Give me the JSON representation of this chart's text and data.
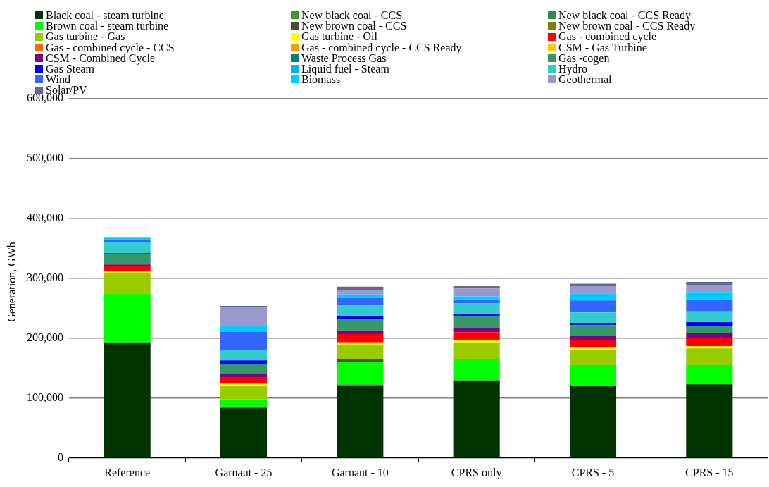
{
  "chart_data": {
    "type": "bar",
    "stacked": true,
    "ylabel": "Generation, GWh",
    "categories": [
      "Reference",
      "Garnaut - 25",
      "Garnaut - 10",
      "CPRS only",
      "CPRS - 5",
      "CPRS - 15"
    ],
    "ylim": [
      0,
      600000
    ],
    "yticks": [
      {
        "value": 0,
        "label": "0"
      },
      {
        "value": 100000,
        "label": "100,000"
      },
      {
        "value": 200000,
        "label": "200,000"
      },
      {
        "value": 300000,
        "label": "300,000"
      },
      {
        "value": 400000,
        "label": "400,000"
      },
      {
        "value": 500000,
        "label": "500,000"
      },
      {
        "value": 600000,
        "label": "600,000"
      }
    ],
    "grid": "y",
    "legend": "top",
    "series": [
      {
        "name": "Black coal - steam turbine",
        "color": "#003300",
        "values": [
          193000,
          84000,
          121000,
          128000,
          121000,
          123000
        ]
      },
      {
        "name": "New black coal - CCS",
        "color": "#339933",
        "values": [
          0,
          2000,
          2000,
          2000,
          0,
          0
        ]
      },
      {
        "name": "New black coal - CCS Ready",
        "color": "#2e8b57",
        "values": [
          0,
          0,
          0,
          0,
          0,
          0
        ]
      },
      {
        "name": "Brown coal - steam turbine",
        "color": "#00ff00",
        "values": [
          82000,
          12000,
          37000,
          35000,
          34000,
          32000
        ]
      },
      {
        "name": "New brown coal - CCS",
        "color": "#4d4d33",
        "values": [
          0,
          0,
          5000,
          0,
          0,
          0
        ]
      },
      {
        "name": "New brown coal - CCS Ready",
        "color": "#808000",
        "values": [
          0,
          0,
          0,
          0,
          0,
          0
        ]
      },
      {
        "name": "Gas turbine - Gas",
        "color": "#99cc00",
        "values": [
          33000,
          23000,
          24000,
          28000,
          26000,
          28000
        ]
      },
      {
        "name": "Gas turbine - Oil",
        "color": "#ffff00",
        "values": [
          4000,
          3000,
          4000,
          4000,
          4000,
          4000
        ]
      },
      {
        "name": "Gas - combined cycle",
        "color": "#ff0000",
        "values": [
          9000,
          11000,
          14000,
          13000,
          12000,
          14000
        ]
      },
      {
        "name": "Gas - combined cycle - CCS",
        "color": "#ff6600",
        "values": [
          0,
          0,
          0,
          0,
          0,
          0
        ]
      },
      {
        "name": "Gas - combined cycle - CCS Ready",
        "color": "#ff9900",
        "values": [
          0,
          0,
          0,
          0,
          0,
          0
        ]
      },
      {
        "name": "CSM - Gas Turbine",
        "color": "#ffcc00",
        "values": [
          0,
          0,
          0,
          0,
          0,
          0
        ]
      },
      {
        "name": "CSM - Combined Cycle",
        "color": "#800080",
        "values": [
          2000,
          5000,
          6000,
          7000,
          7000,
          7000
        ]
      },
      {
        "name": "Waste Process Gas",
        "color": "#008080",
        "values": [
          0,
          0,
          0,
          0,
          0,
          0
        ]
      },
      {
        "name": "Gas -cogen",
        "color": "#339966",
        "values": [
          18000,
          17000,
          18000,
          20000,
          18000,
          13000
        ]
      },
      {
        "name": "Gas  Steam",
        "color": "#0000ff",
        "values": [
          1000,
          6000,
          6000,
          4000,
          3000,
          6000
        ]
      },
      {
        "name": "Liquid fuel - Steam",
        "color": "#00b0f0",
        "values": [
          0,
          0,
          0,
          0,
          0,
          0
        ]
      },
      {
        "name": "Hydro",
        "color": "#33cccc",
        "values": [
          18000,
          18000,
          18000,
          17000,
          18000,
          18000
        ]
      },
      {
        "name": "Wind",
        "color": "#3366ff",
        "values": [
          5000,
          30000,
          12000,
          7000,
          20000,
          20000
        ]
      },
      {
        "name": "Biomass",
        "color": "#00ccff",
        "values": [
          4000,
          9000,
          6000,
          5000,
          12000,
          11000
        ]
      },
      {
        "name": "Geothermal",
        "color": "#9999cc",
        "values": [
          0,
          32000,
          8000,
          13000,
          12000,
          12000
        ]
      },
      {
        "name": "Solar/PV",
        "color": "#666699",
        "values": [
          0,
          2000,
          5000,
          4000,
          4000,
          6000
        ]
      }
    ]
  }
}
